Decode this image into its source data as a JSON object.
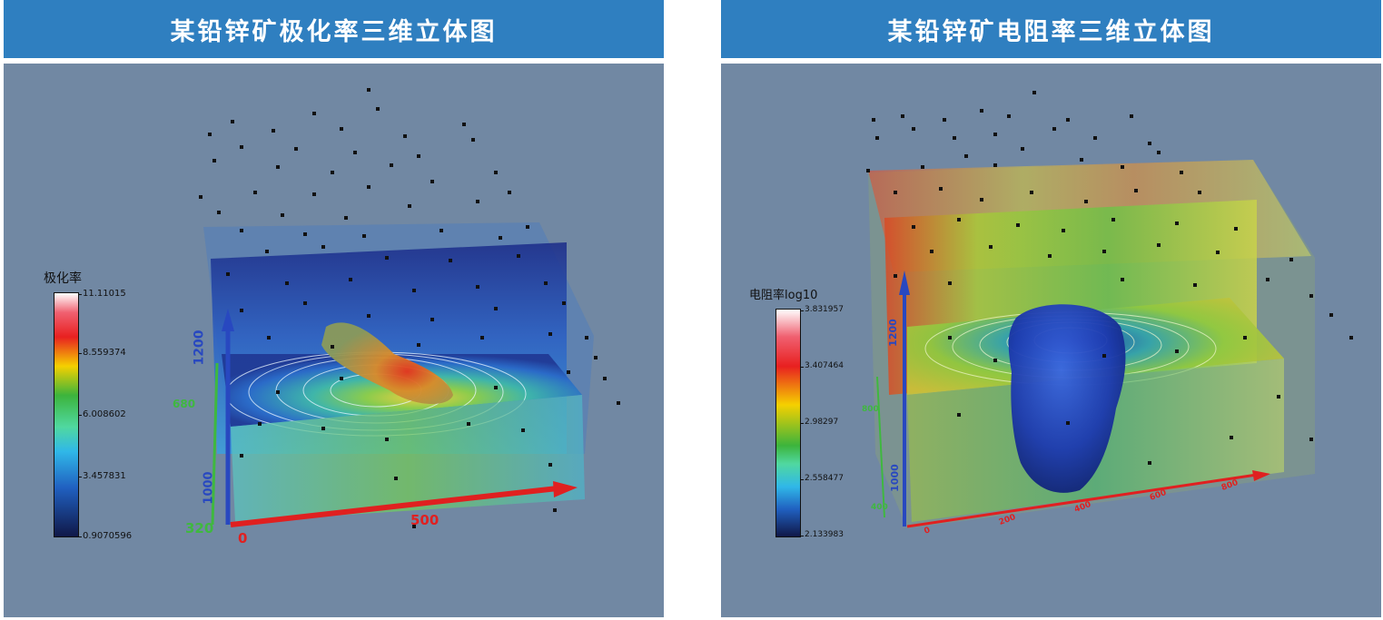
{
  "left_panel": {
    "title": "某铅锌矿极化率三维立体图",
    "legend": {
      "title": "极化率",
      "ticks": [
        "11.11015",
        "8.559374",
        "6.008602",
        "3.457831",
        "0.9070596"
      ]
    },
    "axis_labels": {
      "z_top": "1200",
      "z_bottom": "1000",
      "y_top": "680",
      "y_bottom": "320",
      "x_zero": "0",
      "x_mid": "500"
    }
  },
  "right_panel": {
    "title": "某铅锌矿电阻率三维立体图",
    "legend": {
      "title": "电阻率log10",
      "ticks": [
        "3.831957",
        "3.407464",
        "2.98297",
        "2.558477",
        "2.133983"
      ]
    },
    "axis_labels": {
      "z_top": "1200",
      "z_bottom": "1000",
      "y_top": "800",
      "y_bottom": "400",
      "x_0": "0",
      "x_200": "200",
      "x_400": "400",
      "x_600": "600",
      "x_800": "800"
    }
  },
  "colors": {
    "banner": "#2f7fc0",
    "scene_bg": "#7188a3"
  }
}
